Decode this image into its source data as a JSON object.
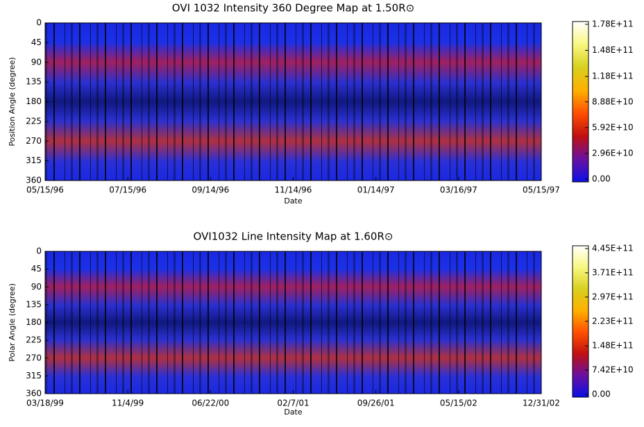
{
  "chart_data": [
    {
      "type": "heatmap",
      "title": "OVI 1032 Intensity 360 Degree Map at 1.50R⊙",
      "xlabel": "Date",
      "ylabel": "Position Angle (degree)",
      "categories": [
        "05/15/96",
        "07/15/96",
        "09/14/96",
        "11/14/96",
        "01/14/97",
        "03/16/97",
        "05/15/97"
      ],
      "ylim": [
        360,
        0
      ],
      "yticks": [
        0,
        45,
        90,
        135,
        180,
        225,
        270,
        315,
        360
      ],
      "colormap": [
        "#0a10e8",
        "#6a10a0",
        "#c01010",
        "#ff5000",
        "#ffb000",
        "#d8d020",
        "#f8f880",
        "#ffffff"
      ],
      "clim": [
        0,
        178000000000
      ],
      "cticks": [
        {
          "value": 0,
          "label": "0.00"
        },
        {
          "value": 29600000000,
          "label": "2.96E+10"
        },
        {
          "value": 59200000000,
          "label": "5.92E+10"
        },
        {
          "value": 88800000000,
          "label": "8.88E+10"
        },
        {
          "value": 118000000000,
          "label": "1.18E+11"
        },
        {
          "value": 148000000000,
          "label": "1.48E+11"
        },
        {
          "value": 178000000000,
          "label": "1.78E+11"
        }
      ]
    },
    {
      "type": "heatmap",
      "title": "OVI1032 Line Intensity Map at 1.60R⊙",
      "xlabel": "Date",
      "ylabel": "Polar Angle (degree)",
      "categories": [
        "03/18/99",
        "11/4/99",
        "06/22/00",
        "02/7/01",
        "09/26/01",
        "05/15/02",
        "12/31/02"
      ],
      "ylim": [
        360,
        0
      ],
      "yticks": [
        0,
        45,
        90,
        135,
        180,
        225,
        270,
        315,
        360
      ],
      "colormap": [
        "#0a10e8",
        "#6a10a0",
        "#c01010",
        "#ff5000",
        "#ffb000",
        "#d8d020",
        "#f8f880",
        "#ffffff"
      ],
      "clim": [
        0,
        445000000000
      ],
      "cticks": [
        {
          "value": 0,
          "label": "0.00"
        },
        {
          "value": 74200000000,
          "label": "7.42E+10"
        },
        {
          "value": 148000000000,
          "label": "1.48E+11"
        },
        {
          "value": 223000000000,
          "label": "2.23E+11"
        },
        {
          "value": 297000000000,
          "label": "2.97E+11"
        },
        {
          "value": 371000000000,
          "label": "3.71E+11"
        },
        {
          "value": 445000000000,
          "label": "4.45E+11"
        }
      ]
    }
  ]
}
